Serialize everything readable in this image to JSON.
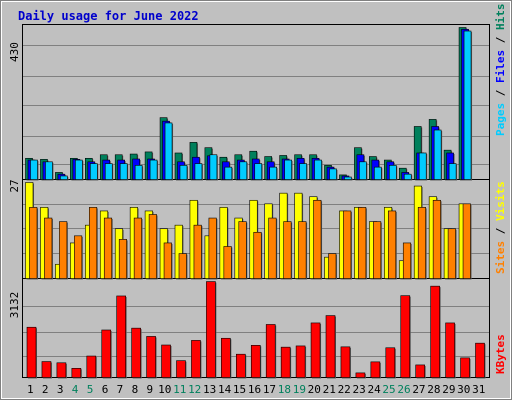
{
  "title": "Daily usage for June 2022",
  "colors": {
    "background": "#c0c0c0",
    "title": "#0000cc",
    "hits": "#00805c",
    "files": "#0000ff",
    "pages": "#00ccff",
    "visits": "#ffff00",
    "sites": "#ff8000",
    "kbytes": "#ff0000",
    "weekend_day": "#00805c",
    "weekday": "#000000"
  },
  "chart_data": [
    {
      "type": "bar",
      "panel": "hits-files-pages",
      "ymax_label": "430",
      "ylim": [
        0,
        430
      ],
      "legend_labels": [
        "Pages",
        "Files",
        "Hits"
      ],
      "x": [
        1,
        2,
        3,
        4,
        5,
        6,
        7,
        8,
        9,
        10,
        11,
        12,
        13,
        14,
        15,
        16,
        17,
        18,
        19,
        20,
        21,
        22,
        23,
        24,
        25,
        26,
        27,
        28,
        29,
        30,
        31
      ],
      "series": [
        {
          "name": "Hits",
          "values": [
            60,
            57,
            20,
            60,
            60,
            70,
            70,
            72,
            78,
            175,
            75,
            105,
            90,
            63,
            70,
            80,
            65,
            68,
            70,
            70,
            40,
            13,
            90,
            65,
            55,
            32,
            150,
            170,
            83,
            430,
            0
          ]
        },
        {
          "name": "Files",
          "values": [
            55,
            50,
            15,
            57,
            50,
            55,
            55,
            58,
            58,
            165,
            50,
            63,
            67,
            50,
            55,
            58,
            50,
            58,
            60,
            60,
            35,
            10,
            70,
            55,
            50,
            20,
            75,
            150,
            75,
            425,
            0
          ]
        },
        {
          "name": "Pages",
          "values": [
            55,
            50,
            10,
            55,
            45,
            45,
            45,
            40,
            55,
            160,
            40,
            45,
            70,
            35,
            50,
            45,
            35,
            55,
            45,
            55,
            30,
            7,
            50,
            35,
            40,
            15,
            75,
            140,
            45,
            420,
            0
          ]
        }
      ]
    },
    {
      "type": "bar",
      "panel": "visits-sites",
      "ymax_label": "27",
      "ylim": [
        0,
        27
      ],
      "legend_labels": [
        "Sites",
        "Visits"
      ],
      "x": [
        1,
        2,
        3,
        4,
        5,
        6,
        7,
        8,
        9,
        10,
        11,
        12,
        13,
        14,
        15,
        16,
        17,
        18,
        19,
        20,
        21,
        22,
        23,
        24,
        25,
        26,
        27,
        28,
        29,
        30,
        31
      ],
      "series": [
        {
          "name": "Visits",
          "values": [
            27,
            20,
            4,
            10,
            15,
            19,
            14,
            20,
            19,
            14,
            15,
            22,
            12,
            20,
            17,
            22,
            21,
            24,
            24,
            23,
            6,
            19,
            20,
            16,
            20,
            5,
            26,
            23,
            14,
            21,
            0
          ]
        },
        {
          "name": "Sites",
          "values": [
            20,
            17,
            16,
            12,
            20,
            17,
            11,
            17,
            18,
            10,
            7,
            15,
            17,
            9,
            16,
            13,
            17,
            16,
            16,
            22,
            7,
            19,
            20,
            16,
            19,
            10,
            20,
            22,
            14,
            21,
            0
          ]
        }
      ]
    },
    {
      "type": "bar",
      "panel": "kbytes",
      "ymax_label": "3132",
      "ylim": [
        0,
        3132
      ],
      "legend_labels": [
        "KBytes"
      ],
      "x": [
        1,
        2,
        3,
        4,
        5,
        6,
        7,
        8,
        9,
        10,
        11,
        12,
        13,
        14,
        15,
        16,
        17,
        18,
        19,
        20,
        21,
        22,
        23,
        24,
        25,
        26,
        27,
        28,
        29,
        30,
        31
      ],
      "series": [
        {
          "name": "KBytes",
          "values": [
            1640,
            520,
            480,
            300,
            700,
            1550,
            2660,
            1610,
            1340,
            1060,
            550,
            1210,
            3130,
            1280,
            760,
            1050,
            1730,
            990,
            1030,
            1780,
            2020,
            1000,
            150,
            510,
            970,
            2670,
            410,
            2980,
            1780,
            640,
            1120
          ]
        }
      ]
    }
  ],
  "weekend_days": [
    4,
    5,
    11,
    12,
    18,
    19,
    25,
    26
  ]
}
